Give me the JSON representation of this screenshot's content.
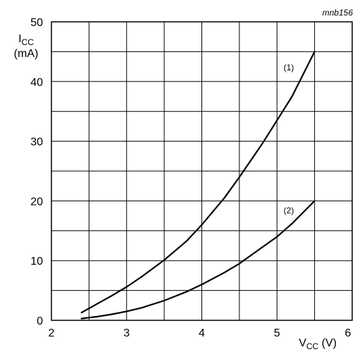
{
  "chart_data": {
    "type": "line",
    "figure_code": "mnb156",
    "xlabel": {
      "main": "V",
      "sub": "CC",
      "unit": " (V)"
    },
    "ylabel": {
      "main": "I",
      "sub": "CC",
      "unit": "(mA)"
    },
    "xlim": [
      2,
      6
    ],
    "ylim": [
      0,
      50
    ],
    "x_ticks": [
      "2",
      "3",
      "4",
      "5",
      "6"
    ],
    "y_ticks": [
      "0",
      "10",
      "20",
      "30",
      "40",
      "50"
    ],
    "x_minor_step": 0.5,
    "y_minor_step": 5,
    "grid": true,
    "series": [
      {
        "label": "(1)",
        "x": [
          2.4,
          2.6,
          2.8,
          3.0,
          3.2,
          3.5,
          3.8,
          4.0,
          4.3,
          4.5,
          4.8,
          5.0,
          5.2,
          5.5
        ],
        "y": [
          1.3,
          2.7,
          4.1,
          5.6,
          7.3,
          10.1,
          13.3,
          16.0,
          20.5,
          24.0,
          29.5,
          33.5,
          37.5,
          45.0
        ]
      },
      {
        "label": "(2)",
        "x": [
          2.4,
          2.6,
          2.8,
          3.0,
          3.2,
          3.5,
          3.8,
          4.0,
          4.3,
          4.5,
          4.8,
          5.0,
          5.2,
          5.5
        ],
        "y": [
          0.3,
          0.6,
          1.0,
          1.5,
          2.1,
          3.3,
          4.8,
          6.0,
          8.0,
          9.5,
          12.2,
          14.0,
          16.2,
          20.0
        ]
      }
    ]
  }
}
